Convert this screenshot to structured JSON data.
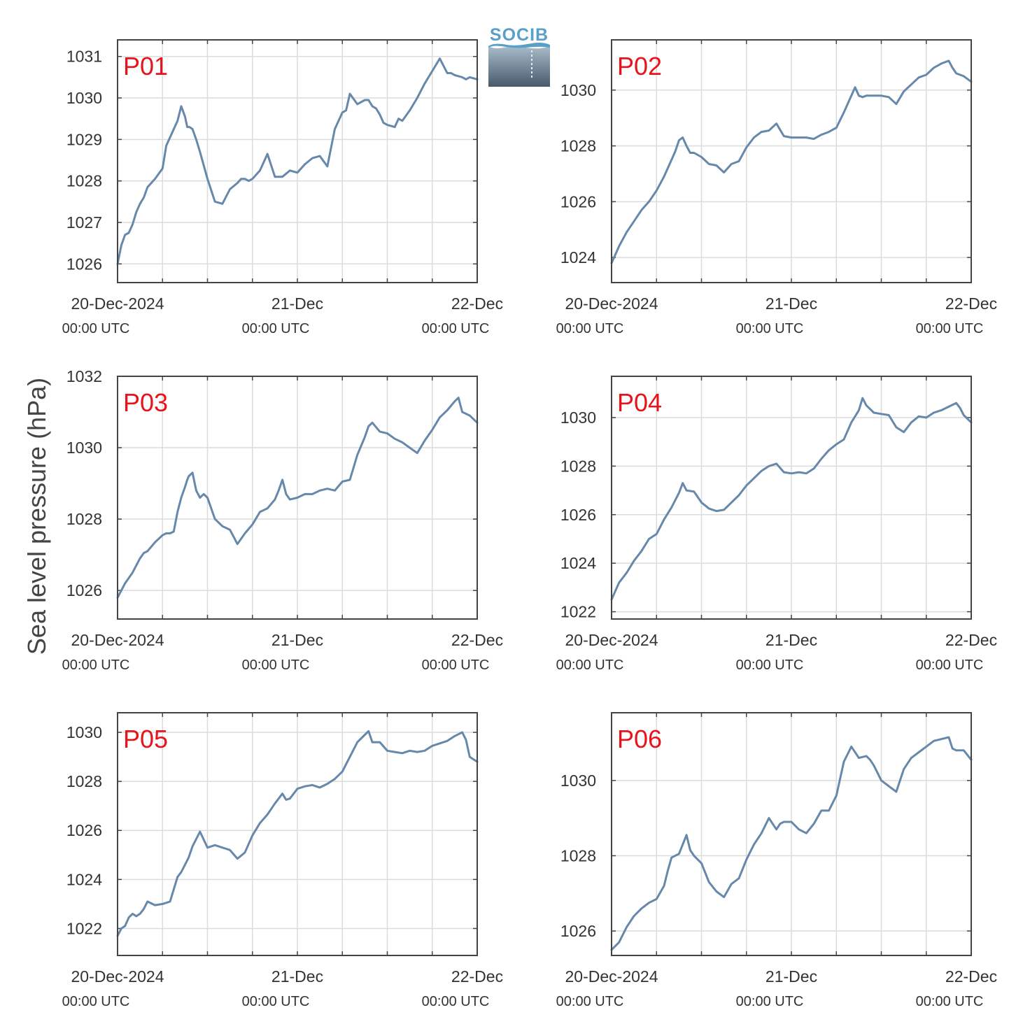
{
  "logo": {
    "text": "SOCIB"
  },
  "ylabel": "Sea level pressure (hPa)",
  "chart_data": [
    {
      "type": "line",
      "panel_label": "P01",
      "xlim": [
        0,
        48
      ],
      "x_ticks": [
        0,
        24,
        48
      ],
      "x_tick_labels": [
        {
          "date": "20-Dec-2024",
          "time": "00:00 UTC"
        },
        {
          "date": "21-Dec",
          "time": "00:00 UTC"
        },
        {
          "date": "22-Dec",
          "time": "00:00 UTC"
        }
      ],
      "ylim": [
        1025.55,
        1031.4
      ],
      "y_ticks": [
        1026,
        1027,
        1028,
        1029,
        1030,
        1031
      ],
      "grid": true,
      "series": [
        {
          "color": "#6688aa",
          "x": [
            0,
            0.5,
            1,
            1.5,
            2,
            2.5,
            3,
            3.5,
            4,
            5,
            6,
            6.5,
            7,
            8,
            8.5,
            9,
            9.3,
            9.6,
            10,
            10.5,
            11,
            12,
            13,
            14,
            15,
            16,
            16.5,
            17,
            17.5,
            18,
            19,
            20,
            21,
            21.5,
            22,
            23,
            24,
            25,
            26,
            27,
            28,
            29,
            30,
            30.5,
            31,
            32,
            33,
            33.5,
            34,
            34.5,
            35,
            35.5,
            36,
            37,
            37.5,
            38,
            39,
            40,
            41,
            42,
            43,
            44,
            44.5,
            45,
            46,
            46.5,
            47,
            48
          ],
          "y": [
            1026.0,
            1026.45,
            1026.7,
            1026.75,
            1026.95,
            1027.25,
            1027.45,
            1027.6,
            1027.85,
            1028.05,
            1028.3,
            1028.85,
            1029.05,
            1029.45,
            1029.8,
            1029.55,
            1029.3,
            1029.3,
            1029.25,
            1029.0,
            1028.7,
            1028.05,
            1027.5,
            1027.45,
            1027.8,
            1027.95,
            1028.05,
            1028.05,
            1028.0,
            1028.05,
            1028.25,
            1028.65,
            1028.1,
            1028.1,
            1028.1,
            1028.25,
            1028.2,
            1028.4,
            1028.55,
            1028.6,
            1028.35,
            1029.25,
            1029.65,
            1029.7,
            1030.1,
            1029.85,
            1029.95,
            1029.95,
            1029.8,
            1029.75,
            1029.6,
            1029.4,
            1029.35,
            1029.3,
            1029.5,
            1029.45,
            1029.7,
            1030.0,
            1030.35,
            1030.65,
            1030.95,
            1030.6,
            1030.6,
            1030.55,
            1030.5,
            1030.45,
            1030.5,
            1030.45
          ]
        }
      ]
    },
    {
      "type": "line",
      "panel_label": "P02",
      "xlim": [
        0,
        48
      ],
      "x_ticks": [
        0,
        24,
        48
      ],
      "x_tick_labels": [
        {
          "date": "20-Dec-2024",
          "time": "00:00 UTC"
        },
        {
          "date": "21-Dec",
          "time": "00:00 UTC"
        },
        {
          "date": "22-Dec",
          "time": "00:00 UTC"
        }
      ],
      "ylim": [
        1023.1,
        1031.8
      ],
      "y_ticks": [
        1024,
        1026,
        1028,
        1030
      ],
      "grid": true,
      "series": [
        {
          "color": "#6688aa",
          "x": [
            0,
            1,
            2,
            3,
            4,
            5,
            6,
            7,
            8,
            8.5,
            9,
            9.5,
            10,
            10.5,
            11,
            12,
            13,
            14,
            15,
            16,
            17,
            18,
            19,
            20,
            21,
            22,
            23,
            24,
            25,
            26,
            27,
            28,
            29,
            30,
            31,
            32,
            32.5,
            33,
            33.5,
            34,
            35,
            36,
            37,
            38,
            39,
            40,
            41,
            42,
            43,
            44,
            45,
            45.5,
            46,
            47,
            48
          ],
          "y": [
            1023.8,
            1024.4,
            1024.9,
            1025.3,
            1025.7,
            1026.0,
            1026.4,
            1026.9,
            1027.5,
            1027.8,
            1028.2,
            1028.3,
            1028.0,
            1027.75,
            1027.75,
            1027.6,
            1027.35,
            1027.3,
            1027.05,
            1027.35,
            1027.45,
            1027.95,
            1028.3,
            1028.5,
            1028.55,
            1028.8,
            1028.35,
            1028.3,
            1028.3,
            1028.3,
            1028.25,
            1028.4,
            1028.5,
            1028.65,
            1029.2,
            1029.8,
            1030.1,
            1029.8,
            1029.75,
            1029.8,
            1029.8,
            1029.8,
            1029.75,
            1029.5,
            1029.95,
            1030.2,
            1030.45,
            1030.55,
            1030.8,
            1030.95,
            1031.05,
            1030.8,
            1030.6,
            1030.5,
            1030.3
          ]
        }
      ]
    },
    {
      "type": "line",
      "panel_label": "P03",
      "xlim": [
        0,
        48
      ],
      "x_ticks": [
        0,
        24,
        48
      ],
      "x_tick_labels": [
        {
          "date": "20-Dec-2024",
          "time": "00:00 UTC"
        },
        {
          "date": "21-Dec",
          "time": "00:00 UTC"
        },
        {
          "date": "22-Dec",
          "time": "00:00 UTC"
        }
      ],
      "ylim": [
        1025.2,
        1032.0
      ],
      "y_ticks": [
        1026,
        1028,
        1030,
        1032
      ],
      "grid": true,
      "series": [
        {
          "color": "#6688aa",
          "x": [
            0,
            1,
            2,
            3,
            3.5,
            4,
            5,
            6,
            6.5,
            7,
            7.5,
            8,
            8.5,
            9,
            9.3,
            9.5,
            10,
            10.5,
            11,
            11.5,
            12,
            13,
            14,
            15,
            15.5,
            16,
            17,
            18,
            19,
            20,
            21,
            21.5,
            22,
            22.5,
            23,
            24,
            25,
            26,
            27,
            28,
            29,
            30,
            31,
            32,
            33,
            33.5,
            34,
            35,
            36,
            37,
            38,
            39,
            40,
            41,
            42,
            43,
            44,
            45,
            45.5,
            46,
            47,
            48
          ],
          "y": [
            1025.8,
            1026.2,
            1026.5,
            1026.9,
            1027.05,
            1027.1,
            1027.35,
            1027.55,
            1027.6,
            1027.6,
            1027.65,
            1028.2,
            1028.6,
            1028.9,
            1029.1,
            1029.2,
            1029.3,
            1028.8,
            1028.6,
            1028.7,
            1028.6,
            1028.0,
            1027.8,
            1027.7,
            1027.5,
            1027.3,
            1027.6,
            1027.85,
            1028.2,
            1028.3,
            1028.55,
            1028.8,
            1029.1,
            1028.7,
            1028.55,
            1028.6,
            1028.7,
            1028.7,
            1028.8,
            1028.85,
            1028.8,
            1029.05,
            1029.1,
            1029.8,
            1030.3,
            1030.6,
            1030.7,
            1030.45,
            1030.4,
            1030.25,
            1030.15,
            1030.0,
            1029.85,
            1030.2,
            1030.5,
            1030.85,
            1031.05,
            1031.3,
            1031.4,
            1031.0,
            1030.9,
            1030.7
          ]
        }
      ]
    },
    {
      "type": "line",
      "panel_label": "P04",
      "xlim": [
        0,
        48
      ],
      "x_ticks": [
        0,
        24,
        48
      ],
      "x_tick_labels": [
        {
          "date": "20-Dec-2024",
          "time": "00:00 UTC"
        },
        {
          "date": "21-Dec",
          "time": "00:00 UTC"
        },
        {
          "date": "22-Dec",
          "time": "00:00 UTC"
        }
      ],
      "ylim": [
        1021.7,
        1031.7
      ],
      "y_ticks": [
        1022,
        1024,
        1026,
        1028,
        1030
      ],
      "grid": true,
      "series": [
        {
          "color": "#6688aa",
          "x": [
            0,
            1,
            2,
            3,
            4,
            5,
            6,
            7,
            8,
            9,
            9.5,
            10,
            11,
            12,
            13,
            14,
            15,
            16,
            17,
            18,
            19,
            20,
            21,
            22,
            23,
            24,
            25,
            26,
            27,
            28,
            29,
            30,
            31,
            32,
            33,
            33.5,
            34,
            35,
            36,
            37,
            38,
            39,
            40,
            41,
            42,
            43,
            44,
            45,
            46,
            46.5,
            47,
            48
          ],
          "y": [
            1022.5,
            1023.2,
            1023.6,
            1024.1,
            1024.5,
            1025.0,
            1025.2,
            1025.8,
            1026.3,
            1026.9,
            1027.3,
            1027.0,
            1026.95,
            1026.5,
            1026.25,
            1026.15,
            1026.2,
            1026.5,
            1026.8,
            1027.2,
            1027.5,
            1027.8,
            1028.0,
            1028.1,
            1027.75,
            1027.7,
            1027.75,
            1027.7,
            1027.9,
            1028.3,
            1028.65,
            1028.9,
            1029.1,
            1029.8,
            1030.3,
            1030.8,
            1030.5,
            1030.2,
            1030.15,
            1030.1,
            1029.6,
            1029.4,
            1029.8,
            1030.05,
            1030.0,
            1030.2,
            1030.3,
            1030.45,
            1030.6,
            1030.4,
            1030.1,
            1029.8
          ]
        }
      ]
    },
    {
      "type": "line",
      "panel_label": "P05",
      "xlim": [
        0,
        48
      ],
      "x_ticks": [
        0,
        24,
        48
      ],
      "x_tick_labels": [
        {
          "date": "20-Dec-2024",
          "time": "00:00 UTC"
        },
        {
          "date": "21-Dec",
          "time": "00:00 UTC"
        },
        {
          "date": "22-Dec",
          "time": "00:00 UTC"
        }
      ],
      "ylim": [
        1020.9,
        1030.8
      ],
      "y_ticks": [
        1022,
        1024,
        1026,
        1028,
        1030
      ],
      "grid": true,
      "series": [
        {
          "color": "#6688aa",
          "x": [
            0,
            0.5,
            1,
            1.5,
            2,
            2.5,
            3,
            3.5,
            4,
            5,
            6,
            7,
            8,
            8.5,
            9,
            9.5,
            10,
            11,
            12,
            13,
            14,
            14.5,
            15,
            16,
            17,
            18,
            19,
            20,
            21,
            22,
            22.5,
            23,
            24,
            25,
            26,
            27,
            28,
            29,
            30,
            31,
            32,
            33,
            33.5,
            34,
            35,
            36,
            37,
            38,
            39,
            40,
            41,
            42,
            43,
            44,
            45,
            46,
            46.5,
            47,
            48
          ],
          "y": [
            1021.7,
            1022.0,
            1022.1,
            1022.45,
            1022.6,
            1022.5,
            1022.6,
            1022.8,
            1023.1,
            1022.95,
            1023.0,
            1023.1,
            1024.1,
            1024.3,
            1024.6,
            1024.9,
            1025.35,
            1025.95,
            1025.3,
            1025.4,
            1025.3,
            1025.25,
            1025.2,
            1024.85,
            1025.1,
            1025.8,
            1026.3,
            1026.65,
            1027.1,
            1027.5,
            1027.25,
            1027.3,
            1027.7,
            1027.8,
            1027.85,
            1027.75,
            1027.9,
            1028.1,
            1028.4,
            1029.0,
            1029.6,
            1029.9,
            1030.05,
            1029.6,
            1029.6,
            1029.25,
            1029.2,
            1029.15,
            1029.25,
            1029.2,
            1029.25,
            1029.45,
            1029.55,
            1029.65,
            1029.85,
            1030.0,
            1029.7,
            1029.0,
            1028.8
          ]
        }
      ]
    },
    {
      "type": "line",
      "panel_label": "P06",
      "xlim": [
        0,
        48
      ],
      "x_ticks": [
        0,
        24,
        48
      ],
      "x_tick_labels": [
        {
          "date": "20-Dec-2024",
          "time": "00:00 UTC"
        },
        {
          "date": "21-Dec",
          "time": "00:00 UTC"
        },
        {
          "date": "22-Dec",
          "time": "00:00 UTC"
        }
      ],
      "ylim": [
        1025.35,
        1031.8
      ],
      "y_ticks": [
        1026,
        1028,
        1030
      ],
      "grid": true,
      "series": [
        {
          "color": "#6688aa",
          "x": [
            0,
            1,
            2,
            3,
            4,
            5,
            6,
            7,
            7.5,
            8,
            8.5,
            9,
            9.5,
            10,
            10.5,
            11,
            12,
            13,
            14,
            15,
            16,
            17,
            18,
            19,
            20,
            21,
            22,
            22.5,
            23,
            24,
            25,
            26,
            27,
            28,
            29,
            30,
            31,
            32,
            33,
            34,
            34.5,
            35,
            36,
            37,
            38,
            39,
            40,
            41,
            42,
            43,
            44,
            45,
            45.5,
            46,
            47,
            48
          ],
          "y": [
            1025.5,
            1025.7,
            1026.1,
            1026.4,
            1026.6,
            1026.75,
            1026.85,
            1027.2,
            1027.6,
            1027.95,
            1028.0,
            1028.05,
            1028.3,
            1028.55,
            1028.15,
            1028.0,
            1027.8,
            1027.3,
            1027.05,
            1026.9,
            1027.25,
            1027.4,
            1027.9,
            1028.3,
            1028.6,
            1029.0,
            1028.7,
            1028.85,
            1028.9,
            1028.9,
            1028.7,
            1028.6,
            1028.85,
            1029.2,
            1029.2,
            1029.6,
            1030.5,
            1030.9,
            1030.6,
            1030.65,
            1030.55,
            1030.4,
            1030.0,
            1029.85,
            1029.7,
            1030.3,
            1030.6,
            1030.75,
            1030.9,
            1031.05,
            1031.1,
            1031.15,
            1030.85,
            1030.8,
            1030.8,
            1030.55
          ]
        }
      ]
    }
  ]
}
